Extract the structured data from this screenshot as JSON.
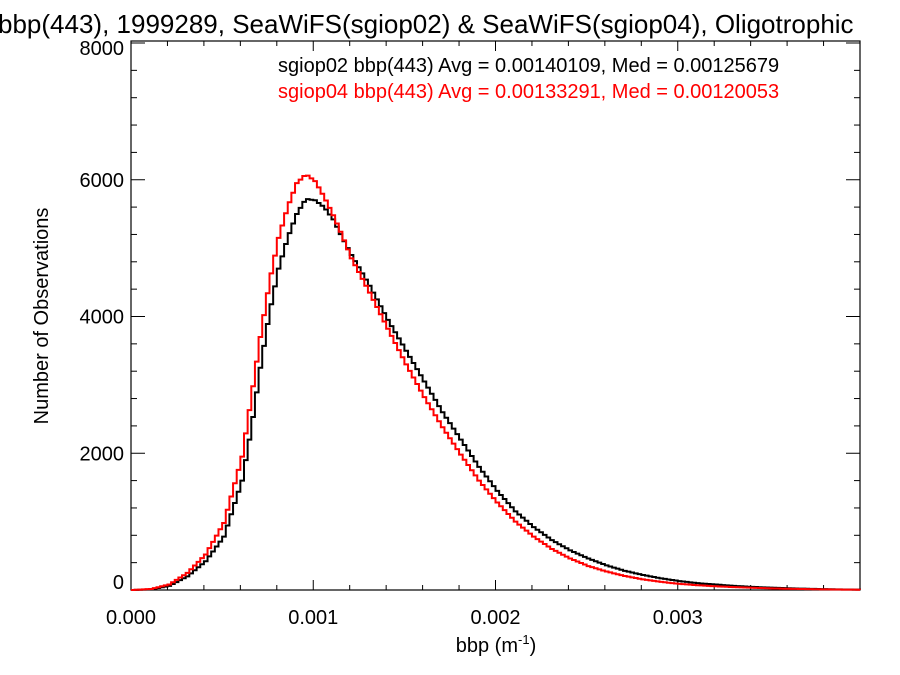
{
  "chart_data": {
    "type": "line",
    "title": "bbp(443), 1999289, SeaWiFS(sgiop02) & SeaWiFS(sgiop04), Oligotrophic",
    "xlabel": "bbp (m",
    "xlabel_sup": "-1",
    "xlabel_close": ")",
    "ylabel": "Number of Observations",
    "xlim": [
      0.0,
      0.004
    ],
    "ylim": [
      0,
      8000
    ],
    "x_ticks": [
      0.0,
      0.001,
      0.002,
      0.003
    ],
    "x_tick_labels": [
      "0.000",
      "0.001",
      "0.002",
      "0.003"
    ],
    "y_ticks": [
      0,
      2000,
      4000,
      6000,
      8000
    ],
    "y_tick_labels": [
      "0",
      "2000",
      "4000",
      "6000",
      "8000"
    ],
    "grid": false,
    "step": true,
    "series": [
      {
        "name": "sgiop02",
        "color": "#000000",
        "legend": "sgiop02 bbp(443) Avg = 0.00140109, Med = 0.00125679",
        "points": [
          [
            0.0,
            0
          ],
          [
            0.0001,
            10
          ],
          [
            0.0002,
            60
          ],
          [
            0.0003,
            200
          ],
          [
            0.0004,
            420
          ],
          [
            0.0005,
            780
          ],
          [
            0.0006,
            1600
          ],
          [
            0.00065,
            2350
          ],
          [
            0.0007,
            3250
          ],
          [
            0.00075,
            4050
          ],
          [
            0.0008,
            4700
          ],
          [
            0.00085,
            5150
          ],
          [
            0.0009,
            5500
          ],
          [
            0.00095,
            5720
          ],
          [
            0.001,
            5700
          ],
          [
            0.00105,
            5600
          ],
          [
            0.0011,
            5420
          ],
          [
            0.00115,
            5150
          ],
          [
            0.0012,
            4900
          ],
          [
            0.0013,
            4450
          ],
          [
            0.0014,
            3950
          ],
          [
            0.0015,
            3500
          ],
          [
            0.0016,
            3050
          ],
          [
            0.0017,
            2600
          ],
          [
            0.0018,
            2200
          ],
          [
            0.0019,
            1800
          ],
          [
            0.002,
            1450
          ],
          [
            0.0021,
            1150
          ],
          [
            0.0022,
            920
          ],
          [
            0.0023,
            730
          ],
          [
            0.0024,
            580
          ],
          [
            0.0025,
            460
          ],
          [
            0.0026,
            360
          ],
          [
            0.0027,
            280
          ],
          [
            0.0028,
            220
          ],
          [
            0.0029,
            170
          ],
          [
            0.003,
            130
          ],
          [
            0.0031,
            100
          ],
          [
            0.0032,
            80
          ],
          [
            0.0033,
            60
          ],
          [
            0.0034,
            45
          ],
          [
            0.0035,
            35
          ],
          [
            0.0036,
            25
          ],
          [
            0.0037,
            18
          ],
          [
            0.0038,
            12
          ],
          [
            0.0039,
            8
          ],
          [
            0.004,
            5
          ]
        ]
      },
      {
        "name": "sgiop04",
        "color": "#ff0000",
        "legend": "sgiop04 bbp(443) Avg = 0.00133291, Med = 0.00120053",
        "points": [
          [
            0.0,
            0
          ],
          [
            0.0001,
            15
          ],
          [
            0.0002,
            80
          ],
          [
            0.0003,
            250
          ],
          [
            0.0004,
            520
          ],
          [
            0.0005,
            980
          ],
          [
            0.0006,
            1950
          ],
          [
            0.00065,
            2800
          ],
          [
            0.0007,
            3700
          ],
          [
            0.00075,
            4500
          ],
          [
            0.0008,
            5150
          ],
          [
            0.00085,
            5600
          ],
          [
            0.0009,
            5950
          ],
          [
            0.00095,
            6080
          ],
          [
            0.001,
            5980
          ],
          [
            0.00105,
            5750
          ],
          [
            0.0011,
            5480
          ],
          [
            0.00115,
            5180
          ],
          [
            0.0012,
            4850
          ],
          [
            0.0013,
            4350
          ],
          [
            0.0014,
            3820
          ],
          [
            0.0015,
            3300
          ],
          [
            0.0016,
            2820
          ],
          [
            0.0017,
            2380
          ],
          [
            0.0018,
            1980
          ],
          [
            0.0019,
            1600
          ],
          [
            0.002,
            1280
          ],
          [
            0.0021,
            1000
          ],
          [
            0.0022,
            780
          ],
          [
            0.0023,
            600
          ],
          [
            0.0024,
            460
          ],
          [
            0.0025,
            350
          ],
          [
            0.0026,
            270
          ],
          [
            0.0027,
            205
          ],
          [
            0.0028,
            155
          ],
          [
            0.0029,
            118
          ],
          [
            0.003,
            90
          ],
          [
            0.0031,
            70
          ],
          [
            0.0032,
            54
          ],
          [
            0.0033,
            42
          ],
          [
            0.0034,
            32
          ],
          [
            0.0035,
            24
          ],
          [
            0.0036,
            18
          ],
          [
            0.0037,
            13
          ],
          [
            0.0038,
            9
          ],
          [
            0.0039,
            6
          ],
          [
            0.004,
            4
          ]
        ]
      }
    ]
  }
}
